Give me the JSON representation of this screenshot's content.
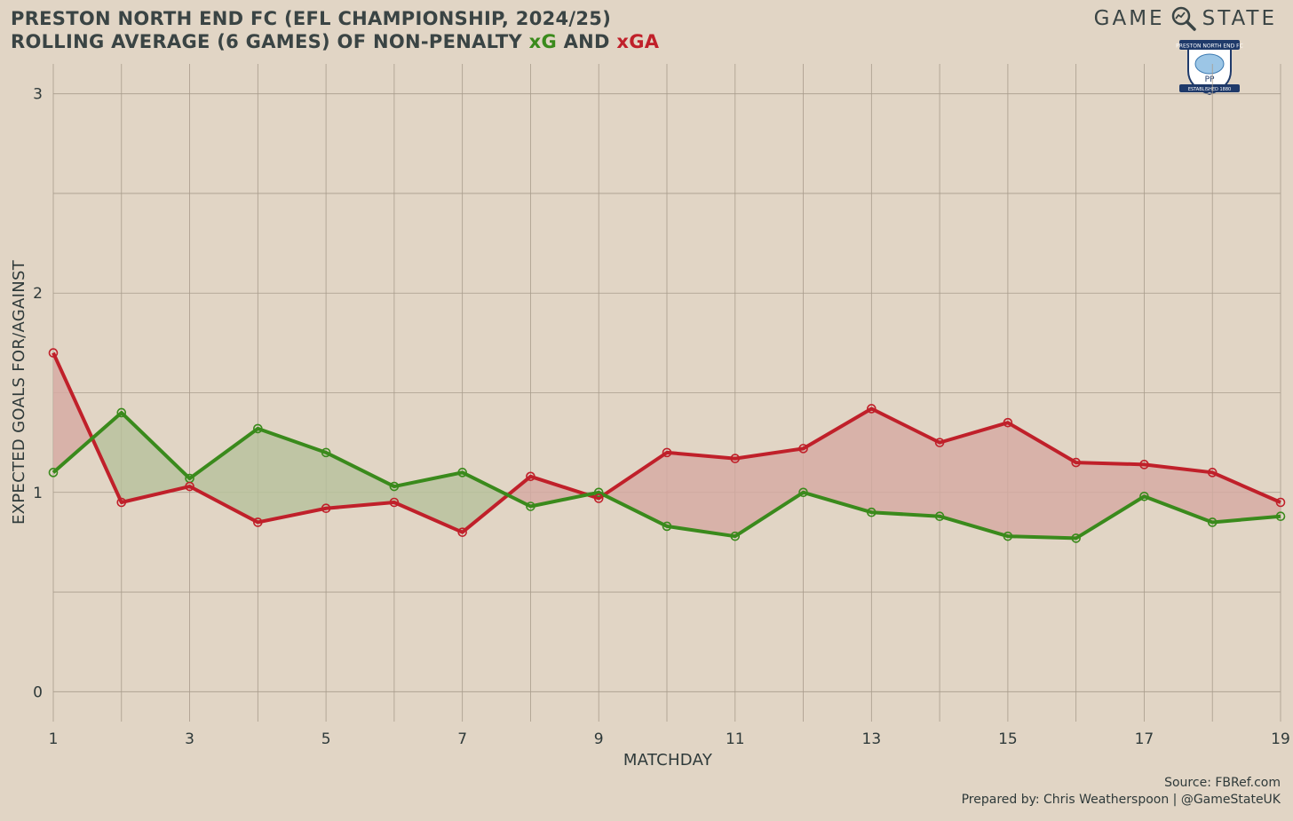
{
  "header": {
    "title_line1": "PRESTON NORTH END FC (EFL CHAMPIONSHIP, 2024/25)",
    "title_line2_prefix": "ROLLING AVERAGE (6 GAMES) OF NON-PENALTY ",
    "title_line2_xg": "xG",
    "title_line2_and": " AND ",
    "title_line2_xga": "xGA"
  },
  "brand": {
    "left_word": "GAME",
    "right_word": "STATE",
    "icon": "magnifier-icon"
  },
  "crest": {
    "top_text": "PRESTON NORTH END FC",
    "initials": "PP",
    "bottom_text": "ESTABLISHED 1880"
  },
  "footer": {
    "source": "Source: FBRef.com",
    "prepared_by": "Prepared by: Chris Weatherspoon | @GameStateUK"
  },
  "chart_data": {
    "type": "line",
    "x": [
      1,
      2,
      3,
      4,
      5,
      6,
      7,
      8,
      9,
      10,
      11,
      12,
      13,
      14,
      15,
      16,
      17,
      18,
      19
    ],
    "x_tick_labels": [
      "1",
      "3",
      "5",
      "7",
      "9",
      "11",
      "13",
      "15",
      "17",
      "19"
    ],
    "y_tick_labels": [
      "0",
      "1",
      "2",
      "3"
    ],
    "xlabel": "MATCHDAY",
    "ylabel": "EXPECTED GOALS FOR/AGAINST",
    "xlim": [
      1,
      19
    ],
    "ylim": [
      -0.15,
      3.15
    ],
    "grid": true,
    "series": [
      {
        "name": "xG",
        "color": "#3a8a1c",
        "values": [
          1.1,
          1.4,
          1.07,
          1.32,
          1.2,
          1.03,
          1.1,
          0.93,
          1.0,
          0.83,
          0.78,
          1.0,
          0.9,
          0.88,
          0.78,
          0.77,
          0.98,
          0.85,
          0.88
        ]
      },
      {
        "name": "xGA",
        "color": "#c0202a",
        "values": [
          1.7,
          0.95,
          1.03,
          0.85,
          0.92,
          0.95,
          0.8,
          1.08,
          0.97,
          1.2,
          1.17,
          1.22,
          1.42,
          1.25,
          1.35,
          1.15,
          1.14,
          1.1,
          0.95
        ]
      }
    ],
    "fill_colors": {
      "xg_above": "#b8c29d",
      "xga_above": "#d6aba3"
    }
  }
}
